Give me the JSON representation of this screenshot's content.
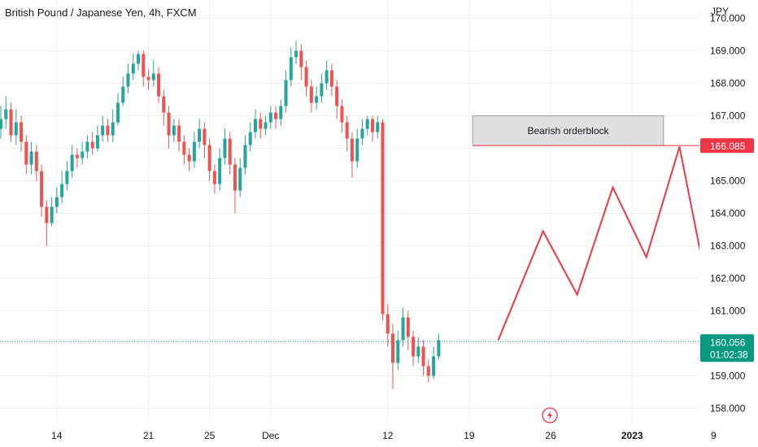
{
  "header": {
    "title": "British Pound / Japanese Yen, 4h, FXCM"
  },
  "chart_data": {
    "type": "candlestick",
    "symbol": "British Pound / Japanese Yen, 4h, FXCM",
    "currency_label": "JPY",
    "ylim": [
      157.7,
      170.2
    ],
    "y_ticks": [
      "170.000",
      "169.000",
      "168.000",
      "167.000",
      "166.000",
      "165.000",
      "164.000",
      "163.000",
      "162.000",
      "161.000",
      "160.000",
      "159.000",
      "158.000"
    ],
    "x_ticks": [
      {
        "label": "14",
        "bar": 11,
        "strong": false
      },
      {
        "label": "21",
        "bar": 29,
        "strong": false
      },
      {
        "label": "25",
        "bar": 41,
        "strong": false
      },
      {
        "label": "Dec",
        "bar": 53,
        "strong": false
      },
      {
        "label": "12",
        "bar": 76,
        "strong": false
      },
      {
        "label": "19",
        "bar": 92,
        "strong": false
      },
      {
        "label": "26",
        "bar": 108,
        "strong": false
      },
      {
        "label": "2023",
        "bar": 124,
        "strong": true
      },
      {
        "label": "9",
        "bar": 140,
        "strong": false
      }
    ],
    "colors": {
      "up": "#26a69a",
      "down": "#ef5350",
      "projection": "#f23645",
      "last_price": "#089981",
      "grid": "#eef0f3"
    },
    "candles": [
      [
        166.6,
        166.9,
        167.3,
        166.3
      ],
      [
        166.9,
        167.2,
        167.6,
        166.6
      ],
      [
        167.2,
        166.4,
        167.4,
        166.2
      ],
      [
        166.4,
        166.8,
        167.2,
        166.1
      ],
      [
        166.8,
        166.2,
        167.0,
        165.9
      ],
      [
        166.2,
        165.5,
        166.4,
        165.2
      ],
      [
        165.5,
        165.9,
        166.2,
        165.2
      ],
      [
        165.9,
        165.3,
        166.1,
        165.0
      ],
      [
        165.3,
        164.2,
        165.5,
        163.9
      ],
      [
        164.2,
        163.7,
        164.4,
        163.0
      ],
      [
        163.7,
        164.2,
        164.5,
        163.6
      ],
      [
        164.2,
        164.5,
        164.8,
        164.0
      ],
      [
        164.5,
        164.9,
        165.3,
        164.3
      ],
      [
        164.9,
        165.3,
        165.6,
        164.7
      ],
      [
        165.3,
        165.8,
        166.1,
        165.1
      ],
      [
        165.8,
        165.7,
        166.0,
        165.4
      ],
      [
        165.7,
        165.9,
        166.2,
        165.5
      ],
      [
        165.9,
        166.2,
        166.4,
        165.7
      ],
      [
        166.2,
        166.0,
        166.5,
        165.8
      ],
      [
        166.0,
        166.4,
        166.7,
        165.9
      ],
      [
        166.4,
        166.7,
        167.0,
        166.2
      ],
      [
        166.7,
        166.4,
        166.9,
        166.2
      ],
      [
        166.4,
        166.8,
        167.2,
        166.2
      ],
      [
        166.8,
        167.4,
        167.7,
        166.7
      ],
      [
        167.4,
        167.9,
        168.2,
        167.3
      ],
      [
        167.9,
        168.3,
        168.6,
        167.7
      ],
      [
        168.3,
        168.6,
        168.9,
        168.1
      ],
      [
        168.6,
        168.9,
        169.0,
        168.4
      ],
      [
        168.9,
        168.2,
        169.0,
        167.9
      ],
      [
        168.2,
        168.1,
        168.4,
        167.8
      ],
      [
        168.1,
        168.3,
        168.7,
        167.9
      ],
      [
        168.3,
        167.6,
        168.5,
        167.4
      ],
      [
        167.6,
        167.1,
        167.8,
        166.7
      ],
      [
        167.1,
        166.4,
        167.3,
        166.0
      ],
      [
        166.4,
        166.7,
        166.9,
        166.2
      ],
      [
        166.7,
        166.2,
        166.9,
        165.9
      ],
      [
        166.2,
        165.8,
        166.4,
        165.5
      ],
      [
        165.8,
        165.6,
        166.0,
        165.3
      ],
      [
        165.6,
        166.2,
        166.5,
        165.4
      ],
      [
        166.2,
        166.6,
        166.9,
        166.0
      ],
      [
        166.6,
        166.1,
        166.8,
        165.7
      ],
      [
        166.1,
        165.3,
        166.3,
        165.0
      ],
      [
        165.3,
        164.9,
        165.5,
        164.6
      ],
      [
        164.9,
        165.7,
        166.0,
        164.7
      ],
      [
        165.7,
        166.3,
        166.6,
        165.5
      ],
      [
        166.3,
        165.5,
        166.5,
        165.2
      ],
      [
        165.5,
        164.7,
        165.7,
        164.0
      ],
      [
        164.7,
        165.4,
        165.7,
        164.5
      ],
      [
        165.4,
        166.1,
        166.4,
        165.2
      ],
      [
        166.1,
        166.5,
        166.8,
        165.9
      ],
      [
        166.5,
        166.9,
        167.2,
        166.3
      ],
      [
        166.9,
        166.6,
        167.1,
        166.3
      ],
      [
        166.6,
        166.8,
        167.0,
        166.4
      ],
      [
        166.8,
        167.1,
        167.3,
        166.6
      ],
      [
        167.1,
        166.9,
        167.3,
        166.6
      ],
      [
        166.9,
        167.3,
        167.5,
        166.7
      ],
      [
        167.3,
        168.1,
        168.4,
        167.1
      ],
      [
        168.1,
        168.8,
        169.1,
        167.9
      ],
      [
        168.8,
        169.0,
        169.3,
        168.6
      ],
      [
        169.0,
        168.5,
        169.2,
        168.1
      ],
      [
        168.5,
        167.9,
        168.7,
        167.6
      ],
      [
        167.9,
        167.4,
        168.1,
        167.1
      ],
      [
        167.4,
        167.6,
        167.9,
        167.2
      ],
      [
        167.6,
        168.0,
        168.3,
        167.4
      ],
      [
        168.0,
        168.4,
        168.7,
        167.8
      ],
      [
        168.4,
        167.9,
        168.6,
        167.6
      ],
      [
        167.9,
        167.3,
        168.1,
        166.9
      ],
      [
        167.3,
        166.8,
        167.5,
        166.5
      ],
      [
        166.8,
        166.3,
        167.0,
        165.9
      ],
      [
        166.3,
        165.6,
        166.5,
        165.1
      ],
      [
        165.6,
        166.3,
        166.6,
        165.4
      ],
      [
        166.3,
        166.6,
        166.9,
        166.1
      ],
      [
        166.6,
        166.9,
        167.0,
        166.4
      ],
      [
        166.9,
        166.5,
        167.0,
        166.2
      ],
      [
        166.5,
        166.8,
        167.0,
        166.3
      ],
      [
        166.8,
        160.9,
        166.9,
        160.7
      ],
      [
        160.9,
        160.3,
        161.2,
        159.9
      ],
      [
        160.3,
        159.4,
        160.6,
        158.6
      ],
      [
        159.4,
        160.1,
        160.4,
        159.2
      ],
      [
        160.1,
        160.8,
        161.1,
        159.9
      ],
      [
        160.8,
        160.2,
        161.0,
        159.8
      ],
      [
        160.2,
        159.6,
        160.4,
        159.3
      ],
      [
        159.6,
        159.9,
        160.2,
        159.4
      ],
      [
        159.9,
        159.3,
        160.1,
        159.0
      ],
      [
        159.3,
        159.0,
        159.5,
        158.8
      ],
      [
        159.0,
        159.6,
        159.9,
        158.9
      ],
      [
        159.6,
        160.1,
        160.3,
        159.5
      ]
    ],
    "last_price": {
      "label": "160.056",
      "value": 160.056,
      "countdown": "01:02:38"
    },
    "orderblock": {
      "label": "Bearish orderblock",
      "top": 167.0,
      "bottom": 166.085,
      "bar_start": 93,
      "bar_end": 130
    },
    "level_line": {
      "value": 166.085,
      "label": "166.085"
    },
    "projection_path": [
      [
        97.7,
        160.1
      ],
      [
        106.5,
        163.45
      ],
      [
        113.2,
        161.5
      ],
      [
        120.2,
        164.8
      ],
      [
        126.8,
        162.65
      ],
      [
        133.3,
        166.05
      ],
      [
        143.0,
        158.4
      ]
    ]
  }
}
